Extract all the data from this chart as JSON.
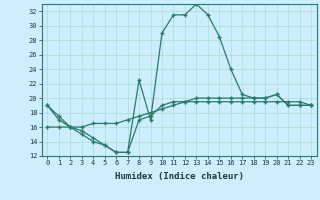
{
  "line1_x": [
    0,
    1,
    2,
    3,
    4,
    5,
    6,
    7,
    8,
    9,
    10,
    11,
    12,
    13,
    14,
    15,
    16,
    17,
    18,
    19,
    20,
    21,
    22,
    23
  ],
  "line1_y": [
    19,
    17,
    16,
    15.5,
    14.5,
    13.5,
    12.5,
    12.5,
    17,
    17.5,
    19,
    19.5,
    19.5,
    20,
    20,
    20,
    20,
    20,
    20,
    20,
    20.5,
    19,
    19,
    19
  ],
  "line2_x": [
    0,
    1,
    2,
    3,
    4,
    5,
    6,
    7,
    8,
    9,
    10,
    11,
    12,
    13,
    14,
    15,
    16,
    17,
    18,
    19,
    20,
    21,
    22,
    23
  ],
  "line2_y": [
    16,
    16,
    16,
    16,
    16.5,
    16.5,
    16.5,
    17,
    17.5,
    18,
    18.5,
    19,
    19.5,
    19.5,
    19.5,
    19.5,
    19.5,
    19.5,
    19.5,
    19.5,
    19.5,
    19.5,
    19.5,
    19
  ],
  "line3_x": [
    0,
    1,
    2,
    3,
    4,
    5,
    6,
    7,
    8,
    9,
    10,
    11,
    12,
    13,
    14,
    15,
    16,
    17,
    18,
    19,
    20,
    21,
    22,
    23
  ],
  "line3_y": [
    19,
    17.5,
    16,
    15,
    14,
    13.5,
    12.5,
    12.5,
    22.5,
    17,
    29,
    31.5,
    31.5,
    33,
    31.5,
    28.5,
    24,
    20.5,
    20,
    20,
    20.5,
    19,
    19,
    19
  ],
  "line_color": "#2a7a6a",
  "bg_color": "#cceeff",
  "grid_color": "#aaddcc",
  "ylim": [
    12,
    33
  ],
  "ytick_vals": [
    12,
    14,
    16,
    18,
    20,
    22,
    24,
    26,
    28,
    30,
    32
  ],
  "xlim": [
    -0.5,
    23.5
  ],
  "xlabel": "Humidex (Indice chaleur)",
  "marker": "+",
  "markersize": 3.5,
  "markeredgewidth": 1.0,
  "linewidth": 0.9,
  "tick_fontsize": 5.0,
  "xlabel_fontsize": 6.5
}
